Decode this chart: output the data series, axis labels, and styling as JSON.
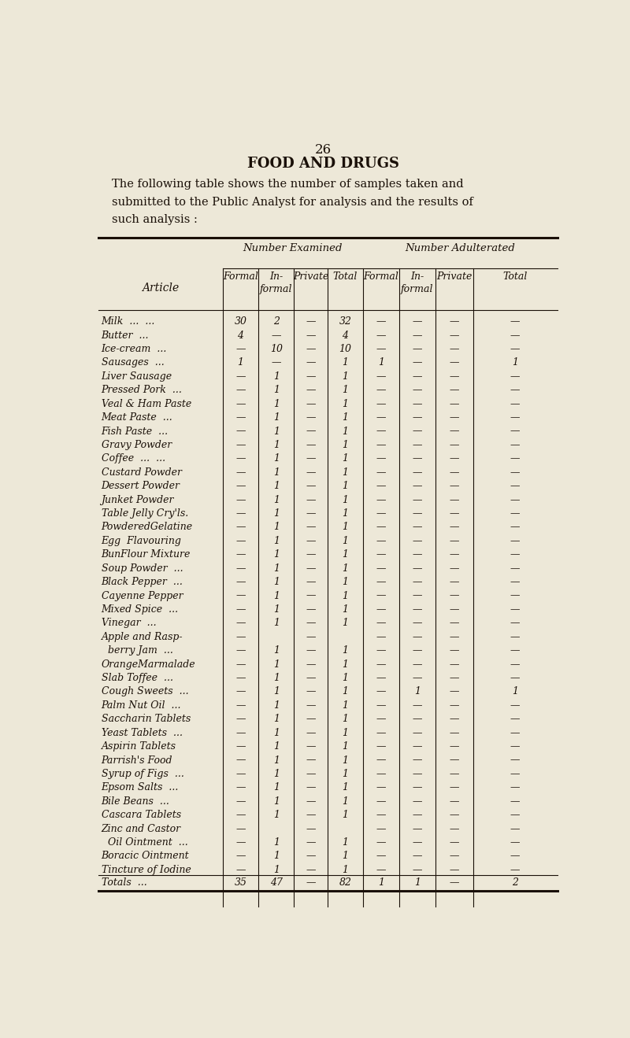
{
  "page_number": "26",
  "title": "FOOD AND DRUGS",
  "intro_line1": "The following table shows the number of samples taken and",
  "intro_line2": "submitted to the Public Analyst for analysis and the results of",
  "intro_line3": "such analysis :",
  "col_group1": "Number Examined",
  "col_group2": "Number Adulterated",
  "col_headers": [
    "Formal",
    "In-\nformal",
    "Private",
    "Total",
    "Formal",
    "In-\nformal",
    "Private",
    "Total"
  ],
  "article_col": "Article",
  "rows": [
    [
      "Milk  ...  ...",
      "30",
      "2",
      "—",
      "32",
      "—",
      "—",
      "—",
      "—"
    ],
    [
      "Butter  ...",
      "4",
      "—",
      "—",
      "4",
      "—",
      "—",
      "—",
      "—"
    ],
    [
      "Ice-cream  ...",
      "—",
      "10",
      "—",
      "10",
      "—",
      "—",
      "—",
      "—"
    ],
    [
      "Sausages  ...",
      "1",
      "—",
      "—",
      "1",
      "1",
      "—",
      "—",
      "1"
    ],
    [
      "Liver Sausage",
      "—",
      "1",
      "—",
      "1",
      "—",
      "—",
      "—",
      "—"
    ],
    [
      "Pressed Pork  ...",
      "—",
      "1",
      "—",
      "1",
      "—",
      "—",
      "—",
      "—"
    ],
    [
      "Veal & Ham Paste",
      "—",
      "1",
      "—",
      "1",
      "—",
      "—",
      "—",
      "—"
    ],
    [
      "Meat Paste  ...",
      "—",
      "1",
      "—",
      "1",
      "—",
      "—",
      "—",
      "—"
    ],
    [
      "Fish Paste  ...",
      "—",
      "1",
      "—",
      "1",
      "—",
      "—",
      "—",
      "—"
    ],
    [
      "Gravy Powder",
      "—",
      "1",
      "—",
      "1",
      "—",
      "—",
      "—",
      "—"
    ],
    [
      "Coffee  ...  ...",
      "—",
      "1",
      "—",
      "1",
      "—",
      "—",
      "—",
      "—"
    ],
    [
      "Custard Powder",
      "—",
      "1",
      "—",
      "1",
      "—",
      "—",
      "—",
      "—"
    ],
    [
      "Dessert Powder",
      "—",
      "1",
      "—",
      "1",
      "—",
      "—",
      "—",
      "—"
    ],
    [
      "Junket Powder",
      "—",
      "1",
      "—",
      "1",
      "—",
      "—",
      "—",
      "—"
    ],
    [
      "Table Jelly Cry'ls.",
      "—",
      "1",
      "—",
      "1",
      "—",
      "—",
      "—",
      "—"
    ],
    [
      "PowderedGelatine",
      "—",
      "1",
      "—",
      "1",
      "—",
      "—",
      "—",
      "—"
    ],
    [
      "Egg  Flavouring",
      "—",
      "1",
      "—",
      "1",
      "—",
      "—",
      "—",
      "—"
    ],
    [
      "BunFlour Mixture",
      "—",
      "1",
      "—",
      "1",
      "—",
      "—",
      "—",
      "—"
    ],
    [
      "Soup Powder  ...",
      "—",
      "1",
      "—",
      "1",
      "—",
      "—",
      "—",
      "—"
    ],
    [
      "Black Pepper  ...",
      "—",
      "1",
      "—",
      "1",
      "—",
      "—",
      "—",
      "—"
    ],
    [
      "Cayenne Pepper",
      "—",
      "1",
      "—",
      "1",
      "—",
      "—",
      "—",
      "—"
    ],
    [
      "Mixed Spice  ...",
      "—",
      "1",
      "—",
      "1",
      "—",
      "—",
      "—",
      "—"
    ],
    [
      "Vinegar  ...",
      "—",
      "1",
      "—",
      "1",
      "—",
      "—",
      "—",
      "—"
    ],
    [
      "Apple and Rasp-",
      "—",
      "",
      "—",
      "",
      "—",
      "—",
      "—",
      "—"
    ],
    [
      "  berry Jam  ...",
      "—",
      "1",
      "—",
      "1",
      "—",
      "—",
      "—",
      "—"
    ],
    [
      "OrangeMarmalade",
      "—",
      "1",
      "—",
      "1",
      "—",
      "—",
      "—",
      "—"
    ],
    [
      "Slab Toffee  ...",
      "—",
      "1",
      "—",
      "1",
      "—",
      "—",
      "—",
      "—"
    ],
    [
      "Cough Sweets  ...",
      "—",
      "1",
      "—",
      "1",
      "—",
      "1",
      "—",
      "1"
    ],
    [
      "Palm Nut Oil  ...",
      "—",
      "1",
      "—",
      "1",
      "—",
      "—",
      "—",
      "—"
    ],
    [
      "Saccharin Tablets",
      "—",
      "1",
      "—",
      "1",
      "—",
      "—",
      "—",
      "—"
    ],
    [
      "Yeast Tablets  ...",
      "—",
      "1",
      "—",
      "1",
      "—",
      "—",
      "—",
      "—"
    ],
    [
      "Aspirin Tablets",
      "—",
      "1",
      "—",
      "1",
      "—",
      "—",
      "—",
      "—"
    ],
    [
      "Parrish's Food",
      "—",
      "1",
      "—",
      "1",
      "—",
      "—",
      "—",
      "—"
    ],
    [
      "Syrup of Figs  ...",
      "—",
      "1",
      "—",
      "1",
      "—",
      "—",
      "—",
      "—"
    ],
    [
      "Epsom Salts  ...",
      "—",
      "1",
      "—",
      "1",
      "—",
      "—",
      "—",
      "—"
    ],
    [
      "Bile Beans  ...",
      "—",
      "1",
      "—",
      "1",
      "—",
      "—",
      "—",
      "—"
    ],
    [
      "Cascara Tablets",
      "—",
      "1",
      "—",
      "1",
      "—",
      "—",
      "—",
      "—"
    ],
    [
      "Zinc and Castor",
      "—",
      "",
      "—",
      "",
      "—",
      "—",
      "—",
      "—"
    ],
    [
      "  Oil Ointment  ...",
      "—",
      "1",
      "—",
      "1",
      "—",
      "—",
      "—",
      "—"
    ],
    [
      "Boracic Ointment",
      "—",
      "1",
      "—",
      "1",
      "—",
      "—",
      "—",
      "—"
    ],
    [
      "Tincture of Iodine",
      "—",
      "1",
      "—",
      "1",
      "—",
      "—",
      "—",
      "—"
    ]
  ],
  "totals_row": [
    "Totals  ...",
    "35",
    "47",
    "—",
    "82",
    "1",
    "1",
    "—",
    "2"
  ],
  "bg_color": "#ede8d8",
  "text_color": "#1a1008",
  "line_color": "#1a1008"
}
